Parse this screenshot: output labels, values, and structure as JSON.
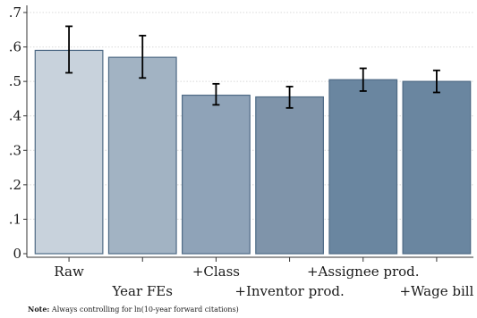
{
  "chart_data": {
    "type": "bar",
    "categories": [
      "Raw",
      "Year FEs",
      "+Class",
      "+Inventor prod.",
      "+Assignee prod.",
      "+Wage bill"
    ],
    "values": [
      0.59,
      0.57,
      0.46,
      0.455,
      0.505,
      0.5
    ],
    "error_low": [
      0.525,
      0.51,
      0.432,
      0.423,
      0.472,
      0.468
    ],
    "error_high": [
      0.66,
      0.633,
      0.493,
      0.485,
      0.538,
      0.532
    ],
    "bar_colors": [
      "#c8d2dc",
      "#a2b3c3",
      "#8fa3b8",
      "#7f94aa",
      "#6a86a0",
      "#6a86a0"
    ],
    "ylim": [
      0,
      0.7
    ],
    "yticks": [
      0,
      0.1,
      0.2,
      0.3,
      0.4,
      0.5,
      0.6,
      0.7
    ],
    "ytick_labels": [
      "0",
      ".1",
      ".2",
      ".3",
      ".4",
      ".5",
      ".6",
      ".7"
    ],
    "title": "",
    "xlabel": "",
    "ylabel": "",
    "grid": true,
    "legend": "none"
  },
  "note": {
    "label": "Note:",
    "text": " Always controlling for ln(10-year forward citations)"
  }
}
